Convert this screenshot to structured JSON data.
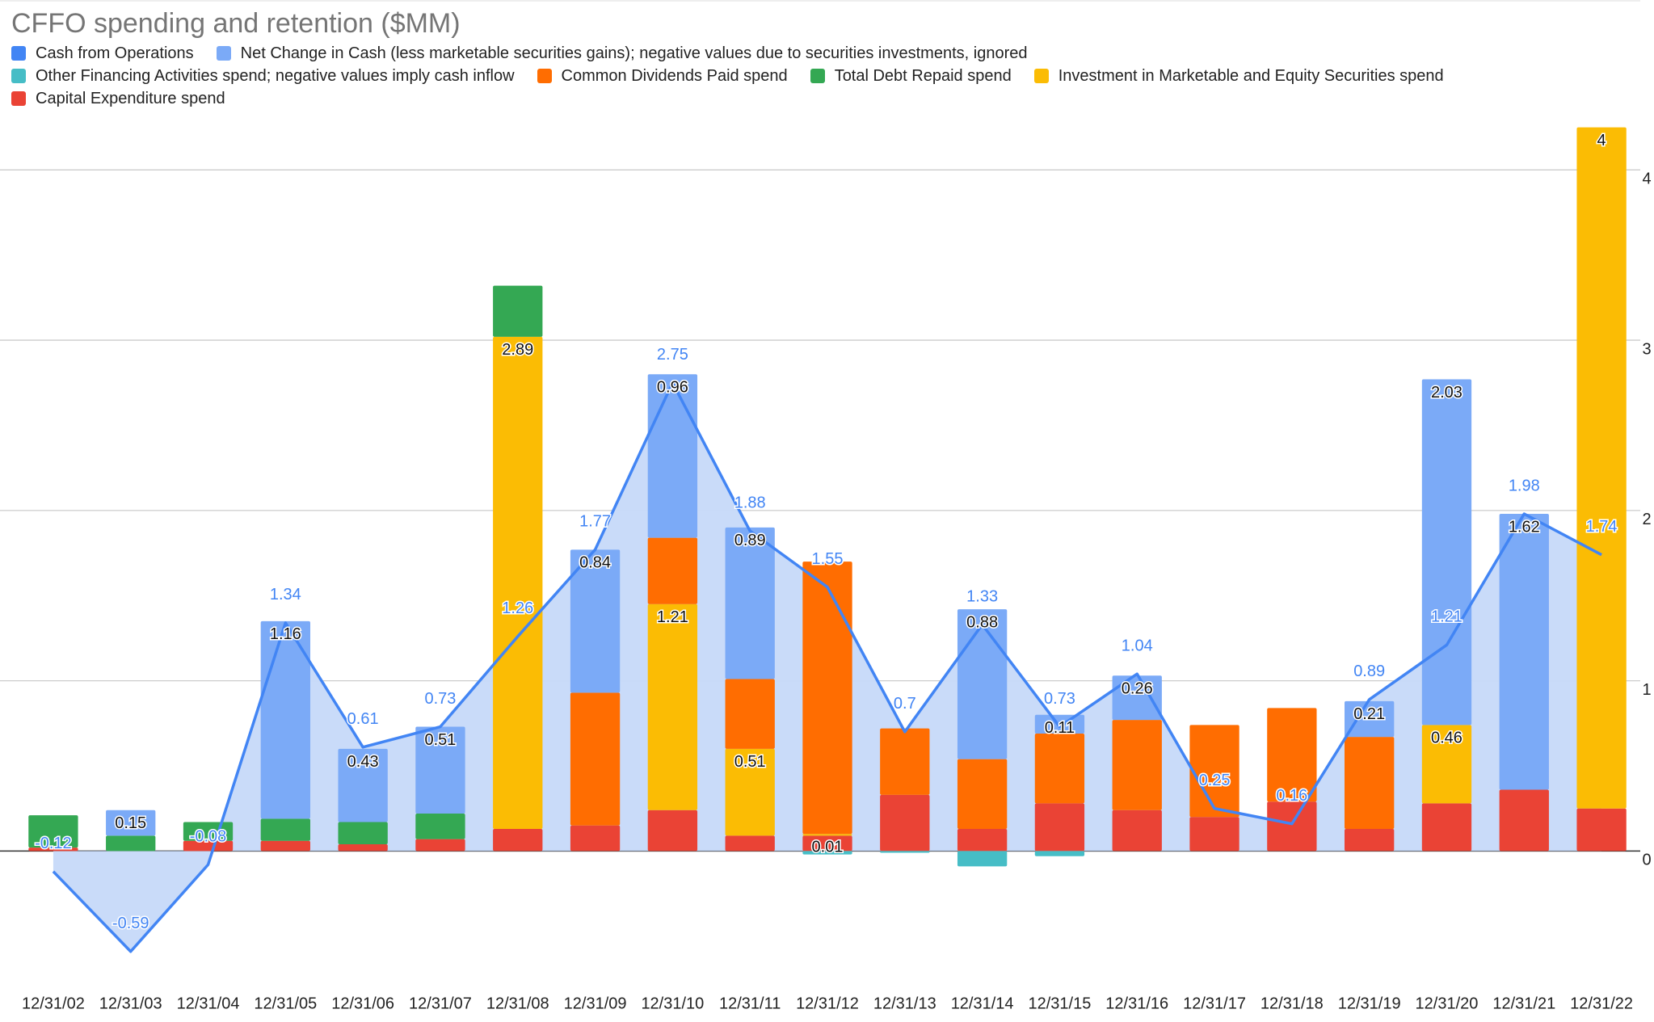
{
  "chart_data": {
    "type": "combo",
    "title": "CFFO spending and retention ($MM)",
    "categories": [
      "12/31/02",
      "12/31/03",
      "12/31/04",
      "12/31/05",
      "12/31/06",
      "12/31/07",
      "12/31/08",
      "12/31/09",
      "12/31/10",
      "12/31/11",
      "12/31/12",
      "12/31/13",
      "12/31/14",
      "12/31/15",
      "12/31/16",
      "12/31/17",
      "12/31/18",
      "12/31/19",
      "12/31/20",
      "12/31/21",
      "12/31/22"
    ],
    "series": [
      {
        "name": "Cash from Operations",
        "type": "line",
        "color": "#4285f4",
        "area_color": "#c6d9f9",
        "labels": true,
        "values": [
          -0.12,
          -0.59,
          -0.08,
          1.34,
          0.61,
          0.73,
          1.26,
          1.77,
          2.75,
          1.88,
          1.55,
          0.7,
          1.33,
          0.73,
          1.04,
          0.25,
          0.16,
          0.89,
          1.21,
          1.98,
          1.74
        ]
      },
      {
        "name": "Net Change in Cash (less marketable securities gains); negative values due to securities investments, ignored",
        "type": "bar",
        "color": "#7baaf7",
        "labels": true,
        "values": [
          null,
          0.15,
          null,
          1.16,
          0.43,
          0.51,
          null,
          0.84,
          0.96,
          0.89,
          null,
          null,
          0.88,
          0.11,
          0.26,
          null,
          null,
          0.21,
          2.03,
          1.62,
          null
        ]
      },
      {
        "name": "Other Financing Activities spend; negative values imply cash inflow",
        "type": "bar",
        "color": "#46bdc6",
        "labels": false,
        "values": [
          null,
          null,
          null,
          null,
          null,
          null,
          null,
          null,
          null,
          null,
          -0.02,
          -0.01,
          -0.09,
          -0.03,
          null,
          null,
          null,
          null,
          null,
          null,
          null
        ]
      },
      {
        "name": "Common Dividends Paid spend",
        "type": "bar",
        "color": "#ff6d01",
        "labels": false,
        "values": [
          null,
          null,
          null,
          null,
          null,
          null,
          null,
          0.78,
          0.39,
          0.41,
          1.6,
          0.39,
          0.41,
          0.41,
          0.53,
          0.54,
          0.55,
          0.54,
          null,
          null,
          null
        ]
      },
      {
        "name": "Total Debt Repaid spend",
        "type": "bar",
        "color": "#34a853",
        "labels": false,
        "values": [
          0.19,
          0.09,
          0.11,
          0.13,
          0.13,
          0.15,
          0.3,
          null,
          null,
          null,
          null,
          null,
          null,
          null,
          null,
          null,
          null,
          null,
          null,
          null,
          null
        ]
      },
      {
        "name": "Investment in Marketable and Equity Securities spend",
        "type": "bar",
        "color": "#fbbc04",
        "labels": true,
        "values": [
          null,
          null,
          null,
          null,
          null,
          null,
          2.89,
          null,
          1.21,
          0.51,
          0.01,
          null,
          null,
          null,
          null,
          null,
          null,
          null,
          0.46,
          null,
          4
        ]
      },
      {
        "name": "Capital Expenditure spend",
        "type": "bar",
        "color": "#ea4335",
        "labels": false,
        "values": [
          0.02,
          null,
          0.06,
          0.06,
          0.04,
          0.07,
          0.13,
          0.15,
          0.24,
          0.09,
          0.09,
          0.33,
          0.13,
          0.28,
          0.24,
          0.2,
          0.29,
          0.13,
          0.28,
          0.36,
          0.25
        ]
      }
    ],
    "ylim": [
      -0.8,
      4.4
    ],
    "yticks": [
      0,
      1,
      2,
      3,
      4
    ],
    "grid": true,
    "legend": "top"
  }
}
